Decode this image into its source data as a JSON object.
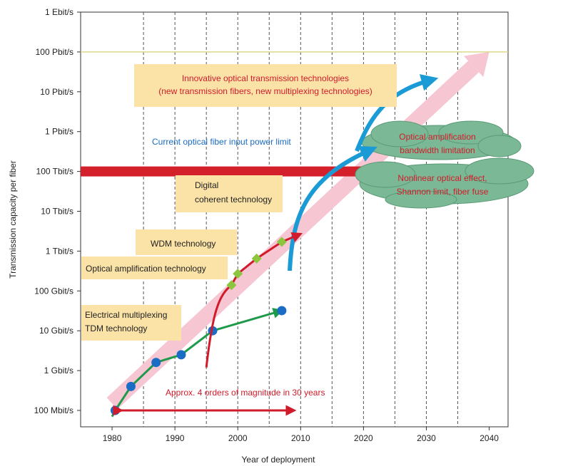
{
  "chart_data": {
    "type": "line",
    "title": "",
    "xlabel": "Year of deployment",
    "ylabel": "Transmission capacity per fiber",
    "xlim": [
      1975,
      2043
    ],
    "x_ticks": [
      1980,
      1990,
      2000,
      2010,
      2020,
      2030,
      2040
    ],
    "x_tick_labels": [
      "1980",
      "1990",
      "2000",
      "2010",
      "2020",
      "2030",
      "2040"
    ],
    "y_scale": "log",
    "y_unit": "bit/s",
    "y_ticks": [
      100000000.0,
      1000000000.0,
      10000000000.0,
      100000000000.0,
      1000000000000.0,
      10000000000000.0,
      100000000000000.0,
      1000000000000000.0,
      1e+16,
      1e+17,
      1e+18
    ],
    "y_tick_labels": [
      "100 Mbit/s",
      "1 Gbit/s",
      "10 Gbit/s",
      "100 Gbit/s",
      "1 Tbit/s",
      "10 Tbit/s",
      "100 Tbit/s",
      "1 Pbit/s",
      "10 Pbit/s",
      "100 Pbit/s",
      "1 Ebit/s"
    ],
    "grid": "vertical dashed",
    "series": [
      {
        "name": "Electrical multiplexing TDM technology",
        "color": "#1f9a4a",
        "marker_color": "#1a6cc4",
        "marker": "circle",
        "x": [
          1980.5,
          1983,
          1987,
          1991,
          1996,
          2007
        ],
        "y": [
          100000000.0,
          400000000.0,
          1600000000.0,
          2500000000.0,
          10000000000.0,
          32000000000.0
        ]
      },
      {
        "name": "WDM technology",
        "color": "#d11b2a",
        "marker_color": "#8cc63e",
        "marker": "diamond",
        "x": [
          1999,
          2000,
          2003,
          2007
        ],
        "y": [
          140000000000.0,
          270000000000.0,
          650000000000.0,
          1700000000000.0
        ]
      }
    ],
    "annotations": {
      "innovative_line1": "Innovative optical transmission technologies",
      "innovative_line2": "(new transmission fibers, new multiplexing technologies)",
      "power_limit": "Current optical fiber input power limit",
      "digital_line1": "Digital",
      "digital_line2": "coherent technology",
      "wdm": "WDM technology",
      "optical_amp": "Optical amplification technology",
      "electrical_line1": "Electrical multiplexing",
      "electrical_line2": "TDM technology",
      "approx": "Approx. 4 orders of magnitude in 30 years",
      "cloud_top_line1": "Optical amplification",
      "cloud_top_line2": "bandwidth limitation",
      "cloud_bottom_line1": "Nonlinear optical effect,",
      "cloud_bottom_line2": "Shannon limit, fiber fuse"
    },
    "reference_levels": {
      "power_limit_level": 100000000000000.0,
      "upper_line_level": 1e+17
    },
    "colors": {
      "trend_arrow": "#f7c6d3",
      "power_limit_bar": "#d4202a",
      "innovation_arrow": "#1a9bd6",
      "label_box": "#fbe3a8",
      "cloud": "#7bb895",
      "annotation_red": "#d11b2a",
      "annotation_blue": "#1a6cc4",
      "upper_line": "#d9d98a"
    }
  }
}
